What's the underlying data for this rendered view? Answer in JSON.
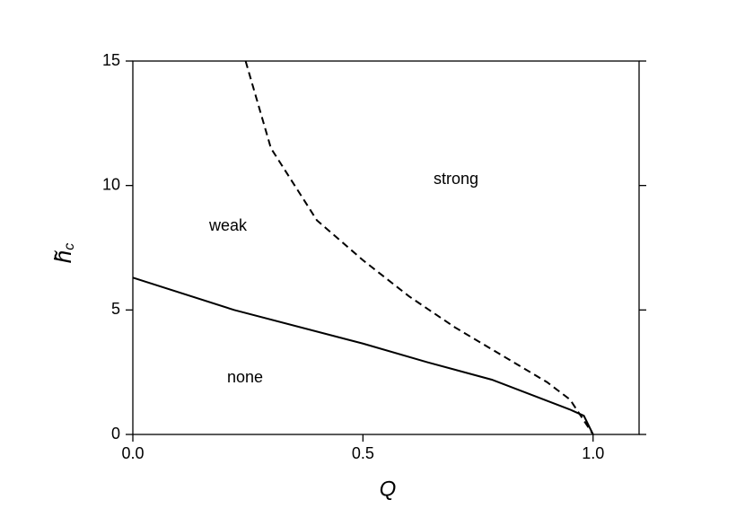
{
  "chart_data": {
    "type": "line",
    "xlabel": "Q",
    "ylabel": "h̃",
    "ylabel_sub": "c",
    "annotations": [
      "weak",
      "strong",
      "none"
    ],
    "series": [
      {
        "color": "#000000",
        "dash": false,
        "x": [
          0.0,
          0.22,
          0.5,
          0.64,
          0.78,
          0.95,
          0.98,
          1.0
        ],
        "values": [
          6.3,
          5.0,
          3.65,
          2.9,
          2.2,
          1.0,
          0.75,
          0.0
        ]
      },
      {
        "color": "#000000",
        "dash": true,
        "x": [
          0.245,
          0.3,
          0.4,
          0.5,
          0.6,
          0.7,
          0.8,
          0.9,
          0.95,
          1.0
        ],
        "values": [
          15.0,
          11.5,
          8.6,
          7.0,
          5.55,
          4.3,
          3.2,
          2.1,
          1.4,
          0.0
        ]
      }
    ],
    "xlim": [
      0.0,
      1.1
    ],
    "xticks": [
      {
        "value": 0,
        "label": "0.0"
      },
      {
        "value": 0.5,
        "label": "0.5"
      },
      {
        "value": 1,
        "label": "1.0"
      }
    ],
    "ylim": [
      0,
      15
    ],
    "yticks": [
      0,
      5,
      10,
      15
    ],
    "grid": false
  }
}
